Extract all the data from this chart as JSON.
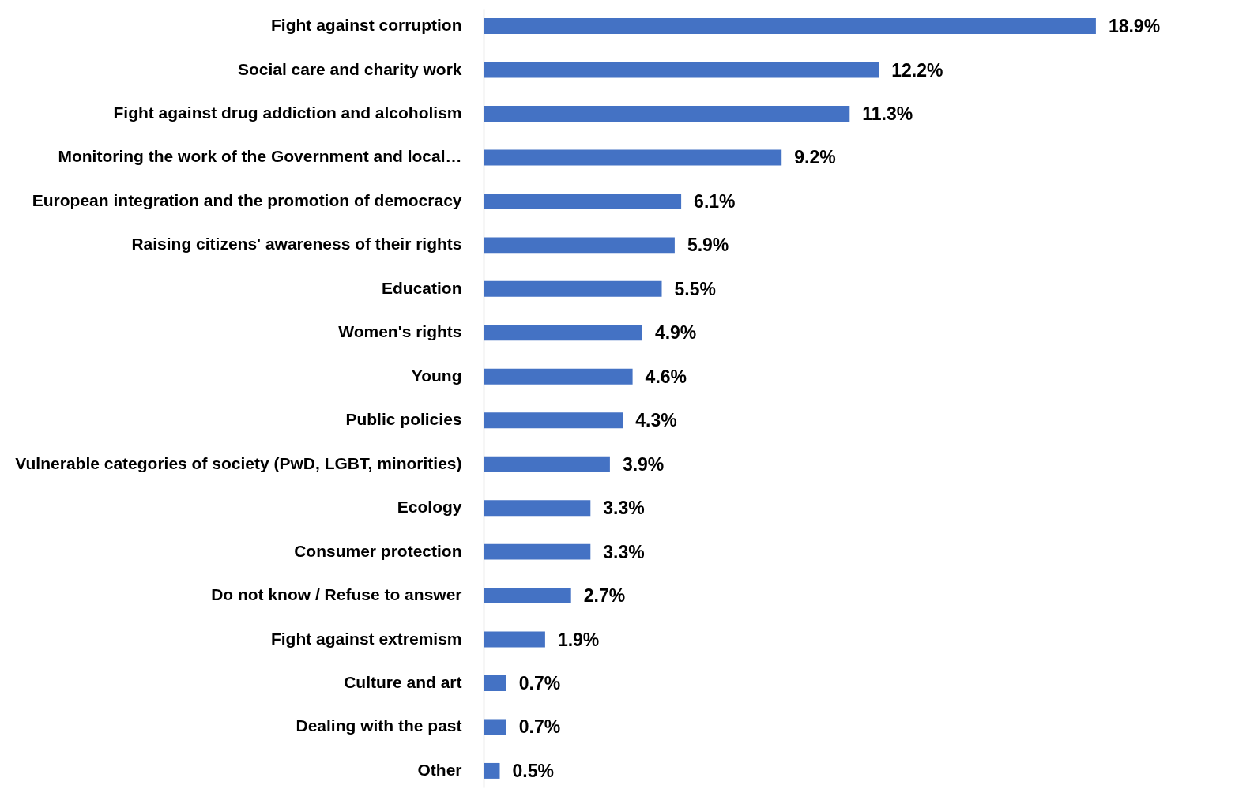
{
  "chart_data": {
    "type": "bar",
    "orientation": "horizontal",
    "categories": [
      "Fight against corruption",
      "Social care and charity work",
      "Fight against drug addiction and alcoholism",
      "Monitoring the work of the Government and local…",
      "European integration and the promotion of democracy",
      "Raising citizens' awareness of their rights",
      "Education",
      "Women's rights",
      "Young",
      "Public policies",
      "Vulnerable categories of society (PwD, LGBT, minorities)",
      "Ecology",
      "Consumer protection",
      "Do not know / Refuse to answer",
      "Fight against extremism",
      "Culture and art",
      "Dealing with the past",
      "Other"
    ],
    "values": [
      18.9,
      12.2,
      11.3,
      9.2,
      6.1,
      5.9,
      5.5,
      4.9,
      4.6,
      4.3,
      3.9,
      3.3,
      3.3,
      2.7,
      1.9,
      0.7,
      0.7,
      0.5
    ],
    "value_labels": [
      "18.9%",
      "12.2%",
      "11.3%",
      "9.2%",
      "6.1%",
      "5.9%",
      "5.5%",
      "4.9%",
      "4.6%",
      "4.3%",
      "3.9%",
      "3.3%",
      "3.3%",
      "2.7%",
      "1.9%",
      "0.7%",
      "0.7%",
      "0.5%"
    ],
    "color": "#4472c4"
  }
}
